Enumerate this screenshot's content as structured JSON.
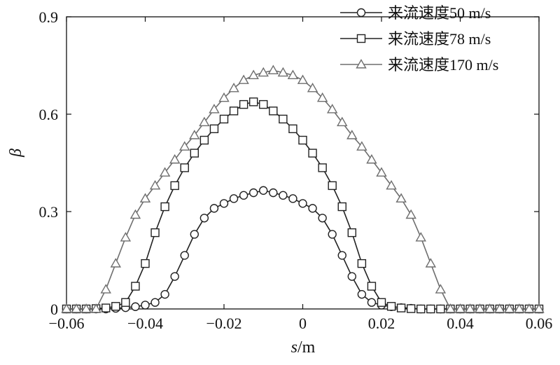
{
  "chart_data": {
    "type": "line",
    "title": "",
    "xlabel_italic": "s",
    "xlabel_unit": "/m",
    "ylabel": "β",
    "xlim": [
      -0.06,
      0.06
    ],
    "ylim": [
      0,
      0.9
    ],
    "xticks": [
      -0.06,
      -0.04,
      -0.02,
      0,
      0.02,
      0.04,
      0.06
    ],
    "xtick_labels": [
      "−0.06",
      "−0.04",
      "−0.02",
      "0",
      "0.02",
      "0.04",
      "0.06"
    ],
    "yticks": [
      0,
      0.3,
      0.6,
      0.9
    ],
    "ytick_labels": [
      "0",
      "0.3",
      "0.6",
      "0.9"
    ],
    "grid": false,
    "legend_position": "top-right",
    "series": [
      {
        "name": "来流速度50 m/s",
        "marker": "circle",
        "color": "#222222",
        "x": [
          -0.06,
          -0.0575,
          -0.055,
          -0.0525,
          -0.05,
          -0.0475,
          -0.045,
          -0.0425,
          -0.04,
          -0.0375,
          -0.035,
          -0.0325,
          -0.03,
          -0.0275,
          -0.025,
          -0.0225,
          -0.02,
          -0.0175,
          -0.015,
          -0.0125,
          -0.01,
          -0.0075,
          -0.005,
          -0.0025,
          0,
          0.0025,
          0.005,
          0.0075,
          0.01,
          0.0125,
          0.015,
          0.0175,
          0.02,
          0.0225,
          0.025,
          0.0275,
          0.03,
          0.0325,
          0.035,
          0.0375,
          0.04,
          0.0425,
          0.045,
          0.0475,
          0.05,
          0.0525,
          0.055,
          0.0575,
          0.06
        ],
        "y": [
          0.0,
          0.0,
          0.0,
          0.0,
          0.0,
          0.002,
          0.004,
          0.007,
          0.012,
          0.02,
          0.045,
          0.1,
          0.165,
          0.23,
          0.28,
          0.31,
          0.325,
          0.34,
          0.35,
          0.358,
          0.365,
          0.358,
          0.35,
          0.34,
          0.325,
          0.31,
          0.28,
          0.23,
          0.165,
          0.1,
          0.045,
          0.02,
          0.012,
          0.007,
          0.004,
          0.002,
          0.0,
          0.0,
          0.0,
          0.0,
          0.0,
          0.0,
          0.0,
          0.0,
          0.0,
          0.0,
          0.0,
          0.0,
          0.0
        ]
      },
      {
        "name": "来流速度78 m/s",
        "marker": "square",
        "color": "#222222",
        "x": [
          -0.06,
          -0.0575,
          -0.055,
          -0.0525,
          -0.05,
          -0.0475,
          -0.045,
          -0.0425,
          -0.04,
          -0.0375,
          -0.035,
          -0.0325,
          -0.03,
          -0.0275,
          -0.025,
          -0.0225,
          -0.02,
          -0.0175,
          -0.015,
          -0.0125,
          -0.01,
          -0.0075,
          -0.005,
          -0.0025,
          0,
          0.0025,
          0.005,
          0.0075,
          0.01,
          0.0125,
          0.015,
          0.0175,
          0.02,
          0.0225,
          0.025,
          0.0275,
          0.03,
          0.0325,
          0.035,
          0.0375,
          0.04,
          0.0425,
          0.045,
          0.0475,
          0.05,
          0.0525,
          0.055,
          0.0575,
          0.06
        ],
        "y": [
          0.0,
          0.0,
          0.0,
          0.001,
          0.003,
          0.008,
          0.02,
          0.07,
          0.14,
          0.235,
          0.315,
          0.38,
          0.435,
          0.48,
          0.52,
          0.555,
          0.585,
          0.61,
          0.63,
          0.638,
          0.63,
          0.61,
          0.585,
          0.555,
          0.52,
          0.48,
          0.435,
          0.38,
          0.315,
          0.235,
          0.14,
          0.07,
          0.02,
          0.008,
          0.003,
          0.001,
          0.0,
          0.0,
          0.0,
          0.0,
          0.0,
          0.0,
          0.0,
          0.0,
          0.0,
          0.0,
          0.0,
          0.0,
          0.0
        ]
      },
      {
        "name": "来流速度170 m/s",
        "marker": "triangle",
        "color": "#6e6e6e",
        "x": [
          -0.06,
          -0.0575,
          -0.055,
          -0.0525,
          -0.05,
          -0.0475,
          -0.045,
          -0.0425,
          -0.04,
          -0.0375,
          -0.035,
          -0.0325,
          -0.03,
          -0.0275,
          -0.025,
          -0.0225,
          -0.02,
          -0.0175,
          -0.015,
          -0.0125,
          -0.01,
          -0.0075,
          -0.005,
          -0.0025,
          0,
          0.0025,
          0.005,
          0.0075,
          0.01,
          0.0125,
          0.015,
          0.0175,
          0.02,
          0.0225,
          0.025,
          0.0275,
          0.03,
          0.0325,
          0.035,
          0.0375,
          0.04,
          0.0425,
          0.045,
          0.0475,
          0.05,
          0.0525,
          0.055,
          0.0575,
          0.06
        ],
        "y": [
          0.0,
          0.0,
          0.0,
          0.0,
          0.06,
          0.14,
          0.22,
          0.29,
          0.34,
          0.38,
          0.42,
          0.46,
          0.5,
          0.535,
          0.575,
          0.615,
          0.65,
          0.68,
          0.705,
          0.72,
          0.728,
          0.735,
          0.728,
          0.72,
          0.705,
          0.68,
          0.65,
          0.615,
          0.575,
          0.535,
          0.5,
          0.46,
          0.42,
          0.38,
          0.34,
          0.29,
          0.22,
          0.14,
          0.06,
          0.0,
          0.0,
          0.0,
          0.0,
          0.0,
          0.0,
          0.0,
          0.0,
          0.0,
          0.0
        ]
      }
    ]
  }
}
